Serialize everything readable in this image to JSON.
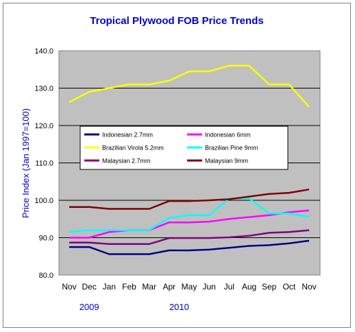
{
  "chart_data": {
    "type": "line",
    "title": "Tropical Plywood FOB Price Trends",
    "ylabel": "Price Index (Jan 1997=100)",
    "xlabel": "",
    "ylim": [
      80,
      140
    ],
    "yticks": [
      "80.0",
      "90.0",
      "100.0",
      "110.0",
      "120.0",
      "130.0",
      "140.0"
    ],
    "categories": [
      "Nov",
      "Dec",
      "Jan",
      "Feb",
      "Mar",
      "Apr",
      "May",
      "Jun",
      "Jul",
      "Aug",
      "Sep",
      "Oct",
      "Nov"
    ],
    "year_labels": [
      {
        "text": "2009",
        "at_category": 1
      },
      {
        "text": "2010",
        "at_category": 5.5
      }
    ],
    "grid": true,
    "plot_background": "#c0c0c0",
    "legend_position": "inside-middle",
    "series": [
      {
        "name": "Indonesian 2.7mm",
        "color": "#000080",
        "values": [
          87.5,
          87.5,
          85.6,
          85.6,
          85.6,
          86.6,
          86.6,
          86.8,
          87.3,
          87.8,
          88.0,
          88.5,
          89.2
        ]
      },
      {
        "name": "Indonesian 6mm",
        "color": "#ff00ff",
        "values": [
          90.0,
          90.0,
          91.5,
          92.0,
          92.0,
          94.1,
          94.1,
          94.3,
          95.0,
          95.5,
          96.0,
          96.8,
          97.3
        ]
      },
      {
        "name": "Brazilian Virola 5.2mm",
        "color": "#ffff00",
        "values": [
          126.3,
          129.0,
          130.0,
          131.0,
          131.0,
          132.0,
          134.5,
          134.5,
          136.0,
          136.0,
          131.0,
          131.0,
          125.0
        ]
      },
      {
        "name": "Brazilian Pine 9mm",
        "color": "#00ffff",
        "values": [
          91.5,
          92.0,
          92.0,
          92.0,
          92.0,
          95.3,
          96.0,
          96.0,
          100.5,
          100.5,
          96.5,
          96.5,
          95.6
        ]
      },
      {
        "name": "Malaysian 2.7mm",
        "color": "#800080",
        "values": [
          88.7,
          88.7,
          88.3,
          88.3,
          88.3,
          89.9,
          89.9,
          89.9,
          90.1,
          90.5,
          91.3,
          91.5,
          92.0
        ]
      },
      {
        "name": "Malaysian 9mm",
        "color": "#800000",
        "values": [
          98.2,
          98.2,
          97.7,
          97.7,
          97.7,
          99.8,
          99.8,
          100.0,
          100.3,
          101.0,
          101.7,
          102.0,
          102.9
        ]
      }
    ]
  }
}
